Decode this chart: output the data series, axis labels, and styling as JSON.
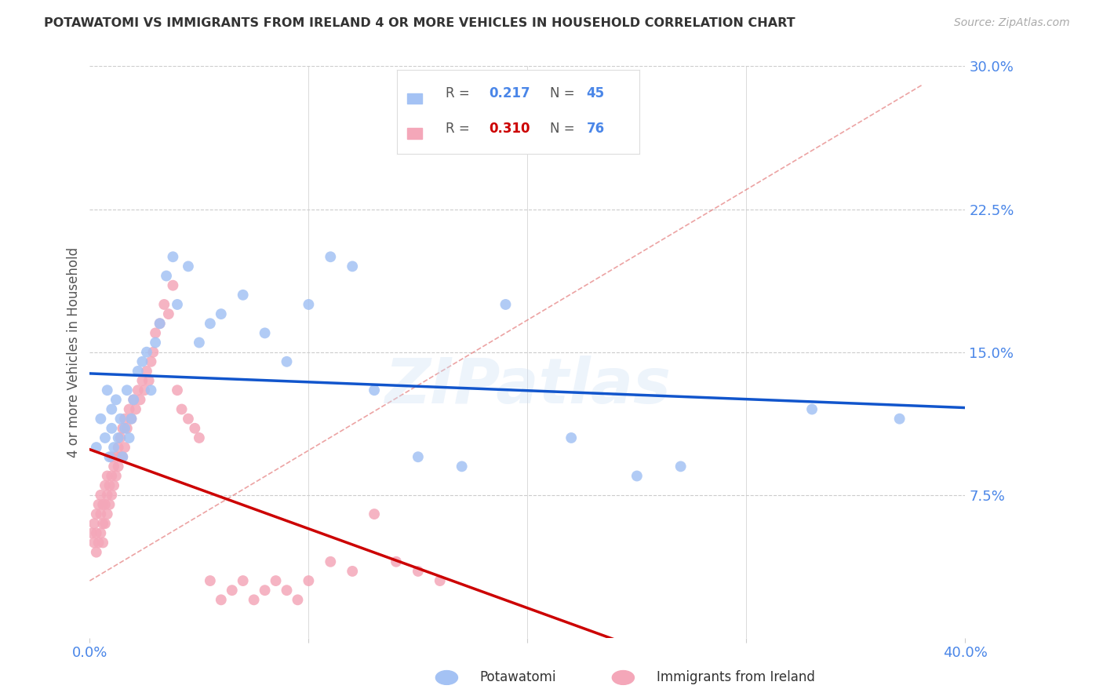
{
  "title": "POTAWATOMI VS IMMIGRANTS FROM IRELAND 4 OR MORE VEHICLES IN HOUSEHOLD CORRELATION CHART",
  "source": "Source: ZipAtlas.com",
  "ylabel": "4 or more Vehicles in Household",
  "xlim": [
    0.0,
    0.4
  ],
  "ylim": [
    0.0,
    0.3
  ],
  "yticks": [
    0.075,
    0.15,
    0.225,
    0.3
  ],
  "ytick_labels": [
    "7.5%",
    "15.0%",
    "22.5%",
    "30.0%"
  ],
  "xticks": [
    0.0,
    0.1,
    0.2,
    0.3,
    0.4
  ],
  "xtick_labels": [
    "0.0%",
    "",
    "",
    "",
    "40.0%"
  ],
  "blue_R": 0.217,
  "blue_N": 45,
  "pink_R": 0.31,
  "pink_N": 76,
  "blue_color": "#a4c2f4",
  "pink_color": "#f4a7b9",
  "blue_line_color": "#1155cc",
  "pink_line_color": "#cc0000",
  "dashed_line_color": "#e06666",
  "background_color": "#ffffff",
  "grid_color": "#cccccc",
  "axis_label_color": "#4a86e8",
  "title_color": "#333333",
  "blue_scatter_x": [
    0.003,
    0.005,
    0.007,
    0.008,
    0.009,
    0.01,
    0.01,
    0.011,
    0.012,
    0.013,
    0.014,
    0.015,
    0.016,
    0.017,
    0.018,
    0.019,
    0.02,
    0.022,
    0.024,
    0.026,
    0.028,
    0.03,
    0.032,
    0.035,
    0.038,
    0.04,
    0.045,
    0.05,
    0.055,
    0.06,
    0.07,
    0.08,
    0.09,
    0.1,
    0.11,
    0.12,
    0.13,
    0.15,
    0.17,
    0.19,
    0.22,
    0.25,
    0.27,
    0.33,
    0.37
  ],
  "blue_scatter_y": [
    0.1,
    0.115,
    0.105,
    0.13,
    0.095,
    0.11,
    0.12,
    0.1,
    0.125,
    0.105,
    0.115,
    0.095,
    0.11,
    0.13,
    0.105,
    0.115,
    0.125,
    0.14,
    0.145,
    0.15,
    0.13,
    0.155,
    0.165,
    0.19,
    0.2,
    0.175,
    0.195,
    0.155,
    0.165,
    0.17,
    0.18,
    0.16,
    0.145,
    0.175,
    0.2,
    0.195,
    0.13,
    0.095,
    0.09,
    0.175,
    0.105,
    0.085,
    0.09,
    0.12,
    0.115
  ],
  "pink_scatter_x": [
    0.001,
    0.002,
    0.002,
    0.003,
    0.003,
    0.003,
    0.004,
    0.004,
    0.005,
    0.005,
    0.005,
    0.006,
    0.006,
    0.006,
    0.007,
    0.007,
    0.007,
    0.008,
    0.008,
    0.008,
    0.009,
    0.009,
    0.01,
    0.01,
    0.01,
    0.011,
    0.011,
    0.012,
    0.012,
    0.013,
    0.013,
    0.014,
    0.014,
    0.015,
    0.015,
    0.016,
    0.016,
    0.017,
    0.018,
    0.019,
    0.02,
    0.021,
    0.022,
    0.023,
    0.024,
    0.025,
    0.026,
    0.027,
    0.028,
    0.029,
    0.03,
    0.032,
    0.034,
    0.036,
    0.038,
    0.04,
    0.042,
    0.045,
    0.048,
    0.05,
    0.055,
    0.06,
    0.065,
    0.07,
    0.075,
    0.08,
    0.085,
    0.09,
    0.095,
    0.1,
    0.11,
    0.12,
    0.13,
    0.14,
    0.15,
    0.16
  ],
  "pink_scatter_y": [
    0.055,
    0.05,
    0.06,
    0.045,
    0.055,
    0.065,
    0.05,
    0.07,
    0.055,
    0.065,
    0.075,
    0.05,
    0.06,
    0.07,
    0.06,
    0.07,
    0.08,
    0.065,
    0.075,
    0.085,
    0.07,
    0.08,
    0.075,
    0.085,
    0.095,
    0.08,
    0.09,
    0.085,
    0.095,
    0.09,
    0.1,
    0.095,
    0.105,
    0.095,
    0.11,
    0.1,
    0.115,
    0.11,
    0.12,
    0.115,
    0.125,
    0.12,
    0.13,
    0.125,
    0.135,
    0.13,
    0.14,
    0.135,
    0.145,
    0.15,
    0.16,
    0.165,
    0.175,
    0.17,
    0.185,
    0.13,
    0.12,
    0.115,
    0.11,
    0.105,
    0.03,
    0.02,
    0.025,
    0.03,
    0.02,
    0.025,
    0.03,
    0.025,
    0.02,
    0.03,
    0.04,
    0.035,
    0.065,
    0.04,
    0.035,
    0.03
  ],
  "watermark_text": "ZIPatlas",
  "legend_box_facecolor": "#ffffff"
}
